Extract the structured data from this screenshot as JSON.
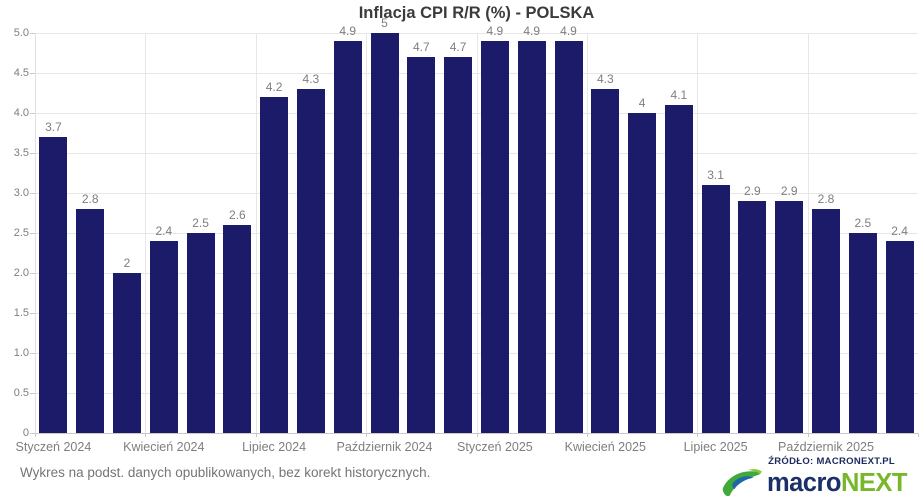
{
  "chart_data": {
    "type": "bar",
    "title": "Inflacja CPI R/R (%) - POLSKA",
    "values": [
      3.7,
      2.8,
      2,
      2.4,
      2.5,
      2.6,
      4.2,
      4.3,
      4.9,
      5,
      4.7,
      4.7,
      4.9,
      4.9,
      4.9,
      4.3,
      4,
      4.1,
      3.1,
      2.9,
      2.9,
      2.8,
      2.5,
      2.4
    ],
    "value_labels": [
      "3.7",
      "2.8",
      "2",
      "2.4",
      "2.5",
      "2.6",
      "4.2",
      "4.3",
      "4.9",
      "5",
      "4.7",
      "4.7",
      "4.9",
      "4.9",
      "4.9",
      "4.3",
      "4",
      "4.1",
      "3.1",
      "2.9",
      "2.9",
      "2.8",
      "2.5",
      "2.4"
    ],
    "x_tick_labels": [
      "Styczeń 2024",
      "Kwiecień 2024",
      "Lipiec 2024",
      "Październik 2024",
      "Styczeń 2025",
      "Kwiecień 2025",
      "Lipiec 2025",
      "Październik 2025"
    ],
    "x_tick_bar_indices": [
      0,
      3,
      6,
      9,
      12,
      15,
      18,
      21
    ],
    "y_tick_labels": [
      "0",
      "0.5",
      "1.0",
      "1.5",
      "2.0",
      "2.5",
      "3.0",
      "3.5",
      "4.0",
      "4.5",
      "5.0"
    ],
    "ylim": [
      0,
      5
    ],
    "grid": true,
    "legend": false,
    "bar_color": "#1b1b69"
  },
  "footer": {
    "text": "Wykres na podst. danych opublikowanych, bez korekt historycznych."
  },
  "source": {
    "label": "ŹRÓDŁO: MACRONEXT.PL",
    "logo_macro": "macro",
    "logo_next": "NEXT"
  },
  "colors": {
    "bar": "#1b1b69",
    "gridline": "#e7e7e7",
    "axis": "#c9c9c9",
    "label_gray": "#7e7e7e",
    "title": "#3b3b3b",
    "source_navy": "#1a2a5e",
    "logo_navy": "#1c3068",
    "logo_green": "#76b82a",
    "logo_blue": "#1f66ad"
  }
}
